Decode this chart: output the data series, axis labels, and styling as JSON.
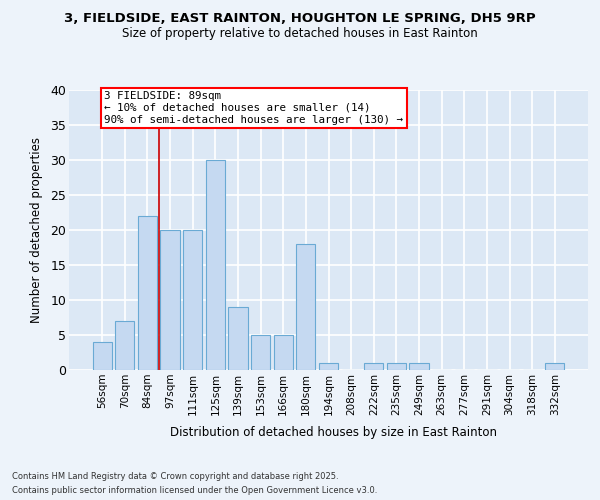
{
  "title1": "3, FIELDSIDE, EAST RAINTON, HOUGHTON LE SPRING, DH5 9RP",
  "title2": "Size of property relative to detached houses in East Rainton",
  "xlabel": "Distribution of detached houses by size in East Rainton",
  "ylabel": "Number of detached properties",
  "bar_labels": [
    "56sqm",
    "70sqm",
    "84sqm",
    "97sqm",
    "111sqm",
    "125sqm",
    "139sqm",
    "153sqm",
    "166sqm",
    "180sqm",
    "194sqm",
    "208sqm",
    "222sqm",
    "235sqm",
    "249sqm",
    "263sqm",
    "277sqm",
    "291sqm",
    "304sqm",
    "318sqm",
    "332sqm"
  ],
  "bar_values": [
    4,
    7,
    22,
    20,
    20,
    30,
    9,
    5,
    5,
    18,
    1,
    0,
    1,
    1,
    1,
    0,
    0,
    0,
    0,
    0,
    1
  ],
  "bar_color": "#c5d9f1",
  "bar_edge_color": "#6aaad4",
  "plot_bg_color": "#dce8f5",
  "fig_bg_color": "#edf3fa",
  "grid_color": "#ffffff",
  "ylim": [
    0,
    40
  ],
  "yticks": [
    0,
    5,
    10,
    15,
    20,
    25,
    30,
    35,
    40
  ],
  "red_line_x": 2.5,
  "annotation_line1": "3 FIELDSIDE: 89sqm",
  "annotation_line2": "← 10% of detached houses are smaller (14)",
  "annotation_line3": "90% of semi-detached houses are larger (130) →",
  "footnote1": "Contains HM Land Registry data © Crown copyright and database right 2025.",
  "footnote2": "Contains public sector information licensed under the Open Government Licence v3.0."
}
